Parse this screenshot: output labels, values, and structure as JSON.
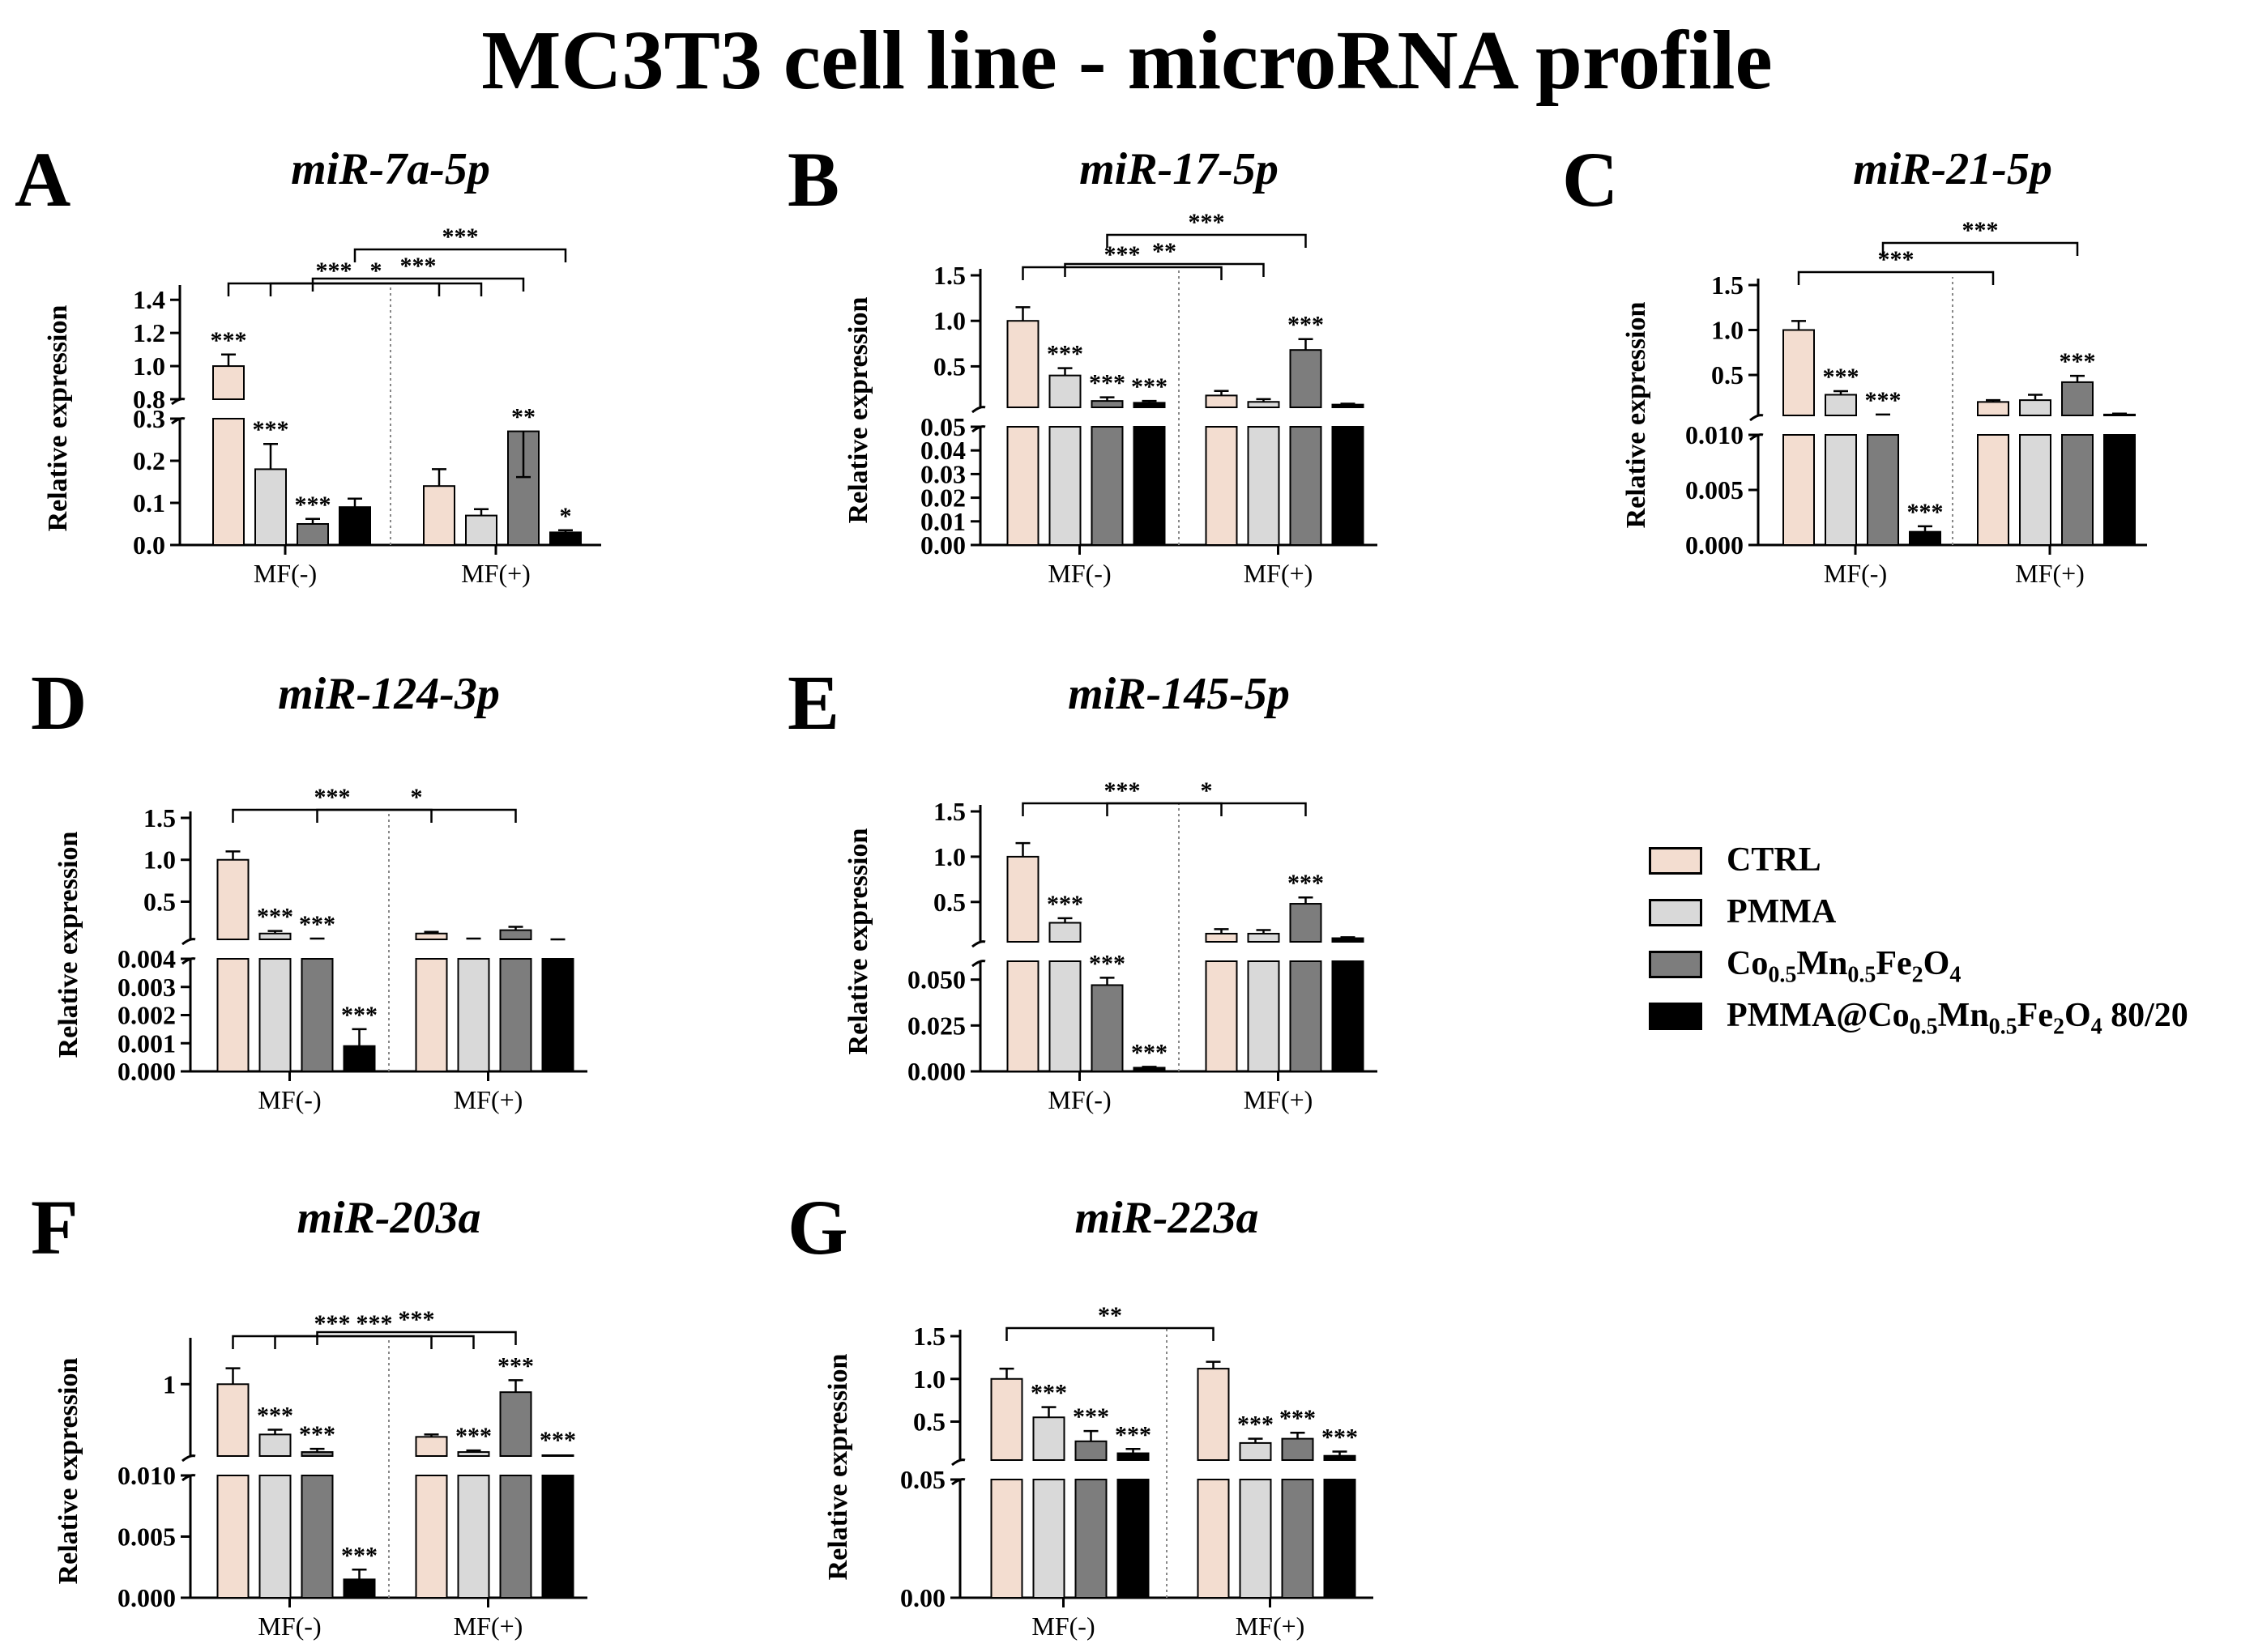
{
  "figure": {
    "title": "MC3T3 cell line - microRNA profile",
    "groups": [
      "MF(-)",
      "MF(+)"
    ],
    "ylabel": "Relative expression"
  },
  "colors": {
    "CTRL": "#f3ddd0",
    "PMMA": "#d9d9d9",
    "Co0.5Mn0.5Fe2O4": "#7d7d7d",
    "PMMA@Co0.5Mn0.5Fe2O4 80/20": "#000000"
  },
  "legend": {
    "items": [
      {
        "key": "CTRL",
        "parts": [
          [
            "CTRL",
            ""
          ]
        ]
      },
      {
        "key": "PMMA",
        "parts": [
          [
            "PMMA",
            ""
          ]
        ]
      },
      {
        "key": "Co0.5Mn0.5Fe2O4",
        "parts": [
          [
            "Co",
            "0.5"
          ],
          [
            "Mn",
            "0.5"
          ],
          [
            "Fe",
            "2"
          ],
          [
            "O",
            "4"
          ]
        ]
      },
      {
        "key": "PMMA@Co0.5Mn0.5Fe2O4 80/20",
        "parts": [
          [
            "PMMA@Co",
            "0.5"
          ],
          [
            "Mn",
            "0.5"
          ],
          [
            "Fe",
            "2"
          ],
          [
            "O",
            "4"
          ],
          [
            " 80/20",
            ""
          ]
        ]
      }
    ]
  },
  "chart_data": [
    {
      "panel": "A",
      "type": "bar",
      "title": "miR-7a-5p",
      "categories": [
        "MF(-)",
        "MF(+)"
      ],
      "series": [
        {
          "name": "CTRL",
          "values": [
            1.0,
            0.14
          ],
          "errors": [
            0.07,
            0.04
          ]
        },
        {
          "name": "PMMA",
          "values": [
            0.18,
            0.07
          ],
          "errors": [
            0.06,
            0.015
          ]
        },
        {
          "name": "Co0.5Mn0.5Fe2O4",
          "values": [
            0.05,
            0.27
          ],
          "errors": [
            0.012,
            0.06
          ]
        },
        {
          "name": "PMMA@Co0.5Mn0.5Fe2O4 80/20",
          "values": [
            0.09,
            0.03
          ],
          "errors": [
            0.02,
            0.005
          ]
        }
      ],
      "bar_stars": [
        [
          "***",
          "***",
          "***",
          null
        ],
        [
          "",
          "",
          "**",
          "*"
        ]
      ],
      "axis_lower": {
        "min": 0,
        "max": 0.3,
        "ticks": [
          "0.0",
          "0.1",
          "0.2",
          "0.3"
        ]
      },
      "axis_upper": {
        "min": 0.8,
        "max": 1.45,
        "ticks": [
          "0.8",
          "1.0",
          "1.2",
          "1.4"
        ]
      },
      "comparisons": [
        {
          "from": [
            0,
            0
          ],
          "to": [
            1,
            0
          ],
          "label": "***"
        },
        {
          "from": [
            0,
            1
          ],
          "to": [
            1,
            1
          ],
          "label": "*"
        },
        {
          "from": [
            0,
            2
          ],
          "to": [
            1,
            2
          ],
          "label": "***"
        },
        {
          "from": [
            0,
            3
          ],
          "to": [
            1,
            3
          ],
          "label": "***"
        }
      ]
    },
    {
      "panel": "B",
      "type": "bar",
      "title": "miR-17-5p",
      "categories": [
        "MF(-)",
        "MF(+)"
      ],
      "series": [
        {
          "name": "CTRL",
          "values": [
            1.0,
            0.18
          ],
          "errors": [
            0.15,
            0.05
          ]
        },
        {
          "name": "PMMA",
          "values": [
            0.4,
            0.11
          ],
          "errors": [
            0.08,
            0.03
          ]
        },
        {
          "name": "Co0.5Mn0.5Fe2O4",
          "values": [
            0.12,
            0.68
          ],
          "errors": [
            0.04,
            0.12
          ]
        },
        {
          "name": "PMMA@Co0.5Mn0.5Fe2O4 80/20",
          "values": [
            0.1,
            0.08
          ],
          "errors": [
            0.02,
            0.01
          ]
        }
      ],
      "bar_stars": [
        [
          "",
          "***",
          "***",
          "***"
        ],
        [
          "",
          "",
          "***",
          ""
        ]
      ],
      "axis_lower": {
        "min": 0,
        "max": 0.05,
        "ticks": [
          "0.00",
          "0.01",
          "0.02",
          "0.03",
          "0.04",
          "0.05"
        ]
      },
      "axis_upper": {
        "min": 0.05,
        "max": 1.5,
        "ticks": [
          "0.5",
          "1.0",
          "1.5"
        ]
      },
      "comparisons": [
        {
          "from": [
            0,
            0
          ],
          "to": [
            1,
            0
          ],
          "label": "***"
        },
        {
          "from": [
            0,
            1
          ],
          "to": [
            1,
            1
          ],
          "label": "**"
        },
        {
          "from": [
            0,
            2
          ],
          "to": [
            1,
            2
          ],
          "label": "***"
        }
      ]
    },
    {
      "panel": "C",
      "type": "bar",
      "title": "miR-21-5p",
      "categories": [
        "MF(-)",
        "MF(+)"
      ],
      "series": [
        {
          "name": "CTRL",
          "values": [
            1.0,
            0.2
          ],
          "errors": [
            0.1,
            0.02
          ]
        },
        {
          "name": "PMMA",
          "values": [
            0.28,
            0.22
          ],
          "errors": [
            0.04,
            0.06
          ]
        },
        {
          "name": "Co0.5Mn0.5Fe2O4",
          "values": [
            0.05,
            0.42
          ],
          "errors": [
            0.01,
            0.07
          ]
        },
        {
          "name": "PMMA@Co0.5Mn0.5Fe2O4 80/20",
          "values": [
            0.0012,
            0.06
          ],
          "errors": [
            0.0005,
            0.01
          ]
        }
      ],
      "bar_stars": [
        [
          "",
          "***",
          "***",
          "***"
        ],
        [
          "",
          "",
          "***",
          ""
        ]
      ],
      "axis_lower": {
        "min": 0,
        "max": 0.01,
        "ticks": [
          "0.000",
          "0.005",
          "0.010"
        ]
      },
      "axis_upper": {
        "min": 0.05,
        "max": 1.5,
        "ticks": [
          "0.5",
          "1.0",
          "1.5"
        ]
      },
      "comparisons": [
        {
          "from": [
            0,
            0
          ],
          "to": [
            1,
            0
          ],
          "label": "***"
        },
        {
          "from": [
            0,
            2
          ],
          "to": [
            1,
            2
          ],
          "label": "***"
        }
      ]
    },
    {
      "panel": "D",
      "type": "bar",
      "title": "miR-124-3p",
      "categories": [
        "MF(-)",
        "MF(+)"
      ],
      "series": [
        {
          "name": "CTRL",
          "values": [
            1.0,
            0.12
          ],
          "errors": [
            0.1,
            0.02
          ]
        },
        {
          "name": "PMMA",
          "values": [
            0.12,
            0.05
          ],
          "errors": [
            0.03,
            0.01
          ]
        },
        {
          "name": "Co0.5Mn0.5Fe2O4",
          "values": [
            0.05,
            0.16
          ],
          "errors": [
            0.01,
            0.04
          ]
        },
        {
          "name": "PMMA@Co0.5Mn0.5Fe2O4 80/20",
          "values": [
            0.0009,
            0.04
          ],
          "errors": [
            0.0006,
            0.01
          ]
        }
      ],
      "bar_stars": [
        [
          "",
          "***",
          "***",
          "***"
        ],
        [
          "",
          "",
          "",
          ""
        ]
      ],
      "axis_lower": {
        "min": 0,
        "max": 0.004,
        "ticks": [
          "0.000",
          "0.001",
          "0.002",
          "0.003",
          "0.004"
        ]
      },
      "axis_upper": {
        "min": 0.05,
        "max": 1.5,
        "ticks": [
          "0.5",
          "1.0",
          "1.5"
        ]
      },
      "comparisons": [
        {
          "from": [
            0,
            0
          ],
          "to": [
            1,
            0
          ],
          "label": "***"
        },
        {
          "from": [
            0,
            2
          ],
          "to": [
            1,
            2
          ],
          "label": "*"
        }
      ]
    },
    {
      "panel": "E",
      "type": "bar",
      "title": "miR-145-5p",
      "categories": [
        "MF(-)",
        "MF(+)"
      ],
      "series": [
        {
          "name": "CTRL",
          "values": [
            1.0,
            0.15
          ],
          "errors": [
            0.15,
            0.05
          ]
        },
        {
          "name": "PMMA",
          "values": [
            0.27,
            0.15
          ],
          "errors": [
            0.05,
            0.04
          ]
        },
        {
          "name": "Co0.5Mn0.5Fe2O4",
          "values": [
            0.047,
            0.48
          ],
          "errors": [
            0.004,
            0.07
          ]
        },
        {
          "name": "PMMA@Co0.5Mn0.5Fe2O4 80/20",
          "values": [
            0.002,
            0.1
          ],
          "errors": [
            0.0005,
            0.01
          ]
        }
      ],
      "bar_stars": [
        [
          "",
          "***",
          "***",
          "***"
        ],
        [
          "",
          "",
          "***",
          ""
        ]
      ],
      "axis_lower": {
        "min": 0,
        "max": 0.06,
        "ticks": [
          "0.000",
          "0.025",
          "0.050"
        ]
      },
      "axis_upper": {
        "min": 0.06,
        "max": 1.5,
        "ticks": [
          "0.5",
          "1.0",
          "1.5"
        ]
      },
      "comparisons": [
        {
          "from": [
            0,
            0
          ],
          "to": [
            1,
            0
          ],
          "label": "***"
        },
        {
          "from": [
            0,
            2
          ],
          "to": [
            1,
            2
          ],
          "label": "*"
        }
      ]
    },
    {
      "panel": "F",
      "type": "bar",
      "title": "miR-203a",
      "categories": [
        "MF(-)",
        "MF(+)"
      ],
      "series": [
        {
          "name": "CTRL",
          "values": [
            1.0,
            0.34
          ],
          "errors": [
            0.2,
            0.03
          ]
        },
        {
          "name": "PMMA",
          "values": [
            0.37,
            0.15
          ],
          "errors": [
            0.06,
            0.02
          ]
        },
        {
          "name": "Co0.5Mn0.5Fe2O4",
          "values": [
            0.15,
            0.9
          ],
          "errors": [
            0.04,
            0.15
          ]
        },
        {
          "name": "PMMA@Co0.5Mn0.5Fe2O4 80/20",
          "values": [
            0.0015,
            0.11
          ],
          "errors": [
            0.0008,
            0.01
          ]
        }
      ],
      "bar_stars": [
        [
          "",
          "***",
          "***",
          "***"
        ],
        [
          "",
          "***",
          "***",
          "***"
        ]
      ],
      "axis_lower": {
        "min": 0,
        "max": 0.01,
        "ticks": [
          "0.000",
          "0.005",
          "0.010"
        ]
      },
      "axis_upper": {
        "min": 0.1,
        "max": 1.5,
        "ticks": [
          "1"
        ]
      },
      "comparisons": [
        {
          "from": [
            0,
            0
          ],
          "to": [
            1,
            0
          ],
          "label": "***"
        },
        {
          "from": [
            0,
            1
          ],
          "to": [
            1,
            1
          ],
          "label": "***"
        },
        {
          "from": [
            0,
            2
          ],
          "to": [
            1,
            2
          ],
          "label": "***"
        }
      ]
    },
    {
      "panel": "G",
      "type": "bar",
      "title": "miR-223a",
      "categories": [
        "MF(-)",
        "MF(+)"
      ],
      "series": [
        {
          "name": "CTRL",
          "values": [
            1.0,
            1.12
          ],
          "errors": [
            0.12,
            0.08
          ]
        },
        {
          "name": "PMMA",
          "values": [
            0.55,
            0.25
          ],
          "errors": [
            0.12,
            0.05
          ]
        },
        {
          "name": "Co0.5Mn0.5Fe2O4",
          "values": [
            0.27,
            0.3
          ],
          "errors": [
            0.12,
            0.07
          ]
        },
        {
          "name": "PMMA@Co0.5Mn0.5Fe2O4 80/20",
          "values": [
            0.13,
            0.1
          ],
          "errors": [
            0.05,
            0.05
          ]
        }
      ],
      "bar_stars": [
        [
          "",
          "***",
          "***",
          "***"
        ],
        [
          "",
          "***",
          "***",
          "***"
        ]
      ],
      "axis_lower": {
        "min": 0,
        "max": 0.05,
        "ticks": [
          "0.00",
          "0.05"
        ]
      },
      "axis_upper": {
        "min": 0.05,
        "max": 1.5,
        "ticks": [
          "0.5",
          "1.0",
          "1.5"
        ]
      },
      "comparisons": [
        {
          "from": [
            0,
            0
          ],
          "to": [
            1,
            0
          ],
          "label": "**"
        }
      ]
    }
  ]
}
